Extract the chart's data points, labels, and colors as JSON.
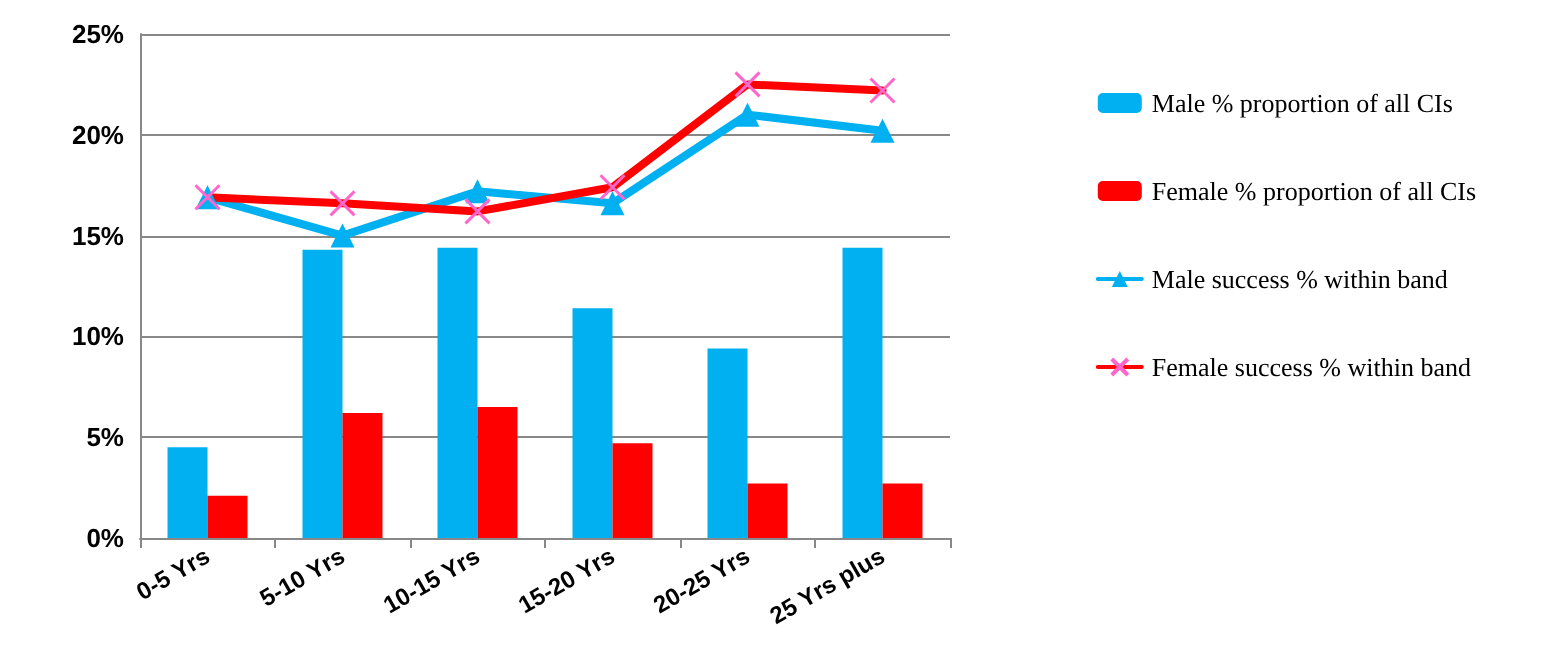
{
  "chart_data": {
    "type": "bar",
    "categories": [
      "0-5 Yrs",
      "5-10 Yrs",
      "10-15 Yrs",
      "15-20 Yrs",
      "20-25 Yrs",
      "25 Yrs plus"
    ],
    "series": [
      {
        "name": "Male % proportion of all CIs",
        "color": "#00b0f0",
        "values": [
          4.5,
          14.3,
          14.4,
          11.4,
          9.4,
          14.4
        ]
      },
      {
        "name": "Female % proportion of all CIs",
        "color": "#ff0000",
        "values": [
          2.1,
          6.2,
          6.5,
          4.7,
          2.7,
          2.7
        ]
      },
      {
        "name": "Male success % within band",
        "type": "line",
        "marker": "triangle",
        "color": "#00b0f0",
        "values": [
          16.9,
          15.0,
          17.2,
          16.6,
          21.0,
          20.2
        ]
      },
      {
        "name": "Female success % within band",
        "type": "line",
        "marker": "cross",
        "color": "#ff0000",
        "values": [
          16.9,
          16.6,
          16.2,
          17.4,
          22.5,
          22.2
        ]
      }
    ],
    "ylim": [
      0,
      25
    ],
    "yticks": [
      {
        "value": 0,
        "label": "0%"
      },
      {
        "value": 5,
        "label": "5%"
      },
      {
        "value": 10,
        "label": "10%"
      },
      {
        "value": 15,
        "label": "15%"
      },
      {
        "value": 20,
        "label": "20%"
      },
      {
        "value": 25,
        "label": "25%"
      }
    ],
    "grid": "y",
    "legend": "right"
  }
}
